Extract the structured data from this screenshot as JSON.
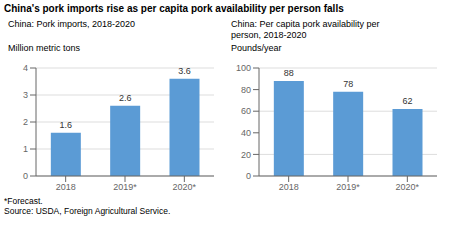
{
  "title": "China's pork imports rise as per capita pork availability per person falls",
  "annotations": [
    "*Forecast.\nSource: USDA, Foreign Agricultural Service."
  ],
  "chart_data": [
    {
      "type": "bar",
      "subtitle": "China: Pork imports, 2018-2020",
      "ylabel": "Million metric tons",
      "categories": [
        "2018",
        "2019*",
        "2020*"
      ],
      "values": [
        1.6,
        2.6,
        3.6
      ],
      "color": "#5b9bd5",
      "ylim": [
        0,
        4
      ],
      "yticks": [
        0,
        1,
        2,
        3,
        4
      ],
      "grid": true,
      "data_labels": true
    },
    {
      "type": "bar",
      "subtitle": "China: Per capita pork availability per\nperson, 2018-2020",
      "ylabel": "Pounds/year",
      "categories": [
        "2018",
        "2019*",
        "2020*"
      ],
      "values": [
        88,
        78,
        62
      ],
      "color": "#5b9bd5",
      "ylim": [
        0,
        100
      ],
      "yticks": [
        0,
        20,
        40,
        60,
        80,
        100
      ],
      "grid": true,
      "data_labels": true
    }
  ]
}
